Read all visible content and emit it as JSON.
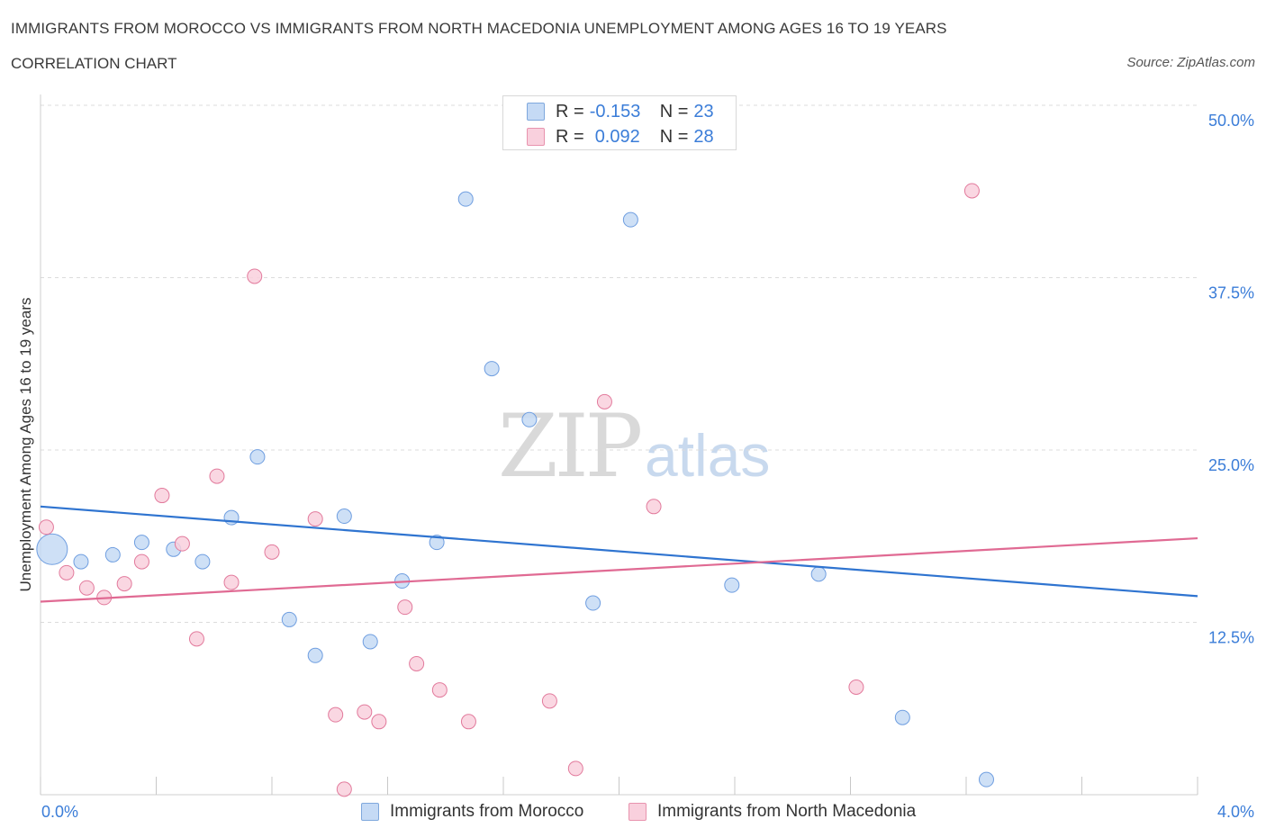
{
  "header": {
    "title": "IMMIGRANTS FROM MOROCCO VS IMMIGRANTS FROM NORTH MACEDONIA UNEMPLOYMENT AMONG AGES 16 TO 19 YEARS",
    "subtitle": "CORRELATION CHART",
    "source": "Source: ZipAtlas.com"
  },
  "watermark": {
    "zip": "ZIP",
    "atlas": "atlas"
  },
  "legend": {
    "rows": [
      {
        "r_label": "R =",
        "r_value": "-0.153",
        "n_label": "N =",
        "n_value": "23",
        "color": "#a9c8f0",
        "border": "#7fa8dd"
      },
      {
        "r_label": "R =",
        "r_value": "0.092",
        "n_label": "N =",
        "n_value": "28",
        "color": "#f6c2d2",
        "border": "#e893ae"
      }
    ]
  },
  "bottom_legend": {
    "morocco": "Immigrants from Morocco",
    "macedonia": "Immigrants from North Macedonia"
  },
  "chart_data": {
    "type": "scatter",
    "title": "IMMIGRANTS FROM MOROCCO VS IMMIGRANTS FROM NORTH MACEDONIA UNEMPLOYMENT AMONG AGES 16 TO 19 YEARS",
    "xlabel": "",
    "ylabel": "Unemployment Among Ages 16 to 19 years",
    "xlim": [
      0,
      4
    ],
    "ylim": [
      0,
      50
    ],
    "x_tick_labels": [
      "0.0%",
      "4.0%"
    ],
    "y_ticks": [
      12.5,
      25,
      37.5,
      50
    ],
    "y_tick_labels": [
      "12.5%",
      "25.0%",
      "37.5%",
      "50.0%"
    ],
    "grid": true,
    "series": [
      {
        "name": "Immigrants from Morocco",
        "color": "#6f9ee0",
        "fill": "#c5daf5",
        "trend": {
          "x": [
            0,
            4
          ],
          "y": [
            20.9,
            14.4
          ]
        },
        "points": [
          {
            "x": 0.04,
            "y": 17.8,
            "s": "large"
          },
          {
            "x": 0.14,
            "y": 16.9
          },
          {
            "x": 0.25,
            "y": 17.4
          },
          {
            "x": 0.35,
            "y": 18.3
          },
          {
            "x": 0.46,
            "y": 17.8
          },
          {
            "x": 0.56,
            "y": 16.9
          },
          {
            "x": 0.66,
            "y": 20.1
          },
          {
            "x": 0.75,
            "y": 24.5
          },
          {
            "x": 0.86,
            "y": 12.7
          },
          {
            "x": 0.95,
            "y": 10.1
          },
          {
            "x": 1.05,
            "y": 20.2
          },
          {
            "x": 1.14,
            "y": 11.1
          },
          {
            "x": 1.25,
            "y": 15.5
          },
          {
            "x": 1.37,
            "y": 18.3
          },
          {
            "x": 1.47,
            "y": 43.2
          },
          {
            "x": 1.56,
            "y": 30.9
          },
          {
            "x": 1.69,
            "y": 27.2
          },
          {
            "x": 1.91,
            "y": 13.9
          },
          {
            "x": 2.04,
            "y": 41.7
          },
          {
            "x": 2.39,
            "y": 15.2
          },
          {
            "x": 2.69,
            "y": 16.0
          },
          {
            "x": 2.98,
            "y": 5.6
          },
          {
            "x": 3.27,
            "y": 1.1
          }
        ]
      },
      {
        "name": "Immigrants from North Macedonia",
        "color": "#e27a9c",
        "fill": "#f9d0dd",
        "trend": {
          "x": [
            0,
            4
          ],
          "y": [
            14.0,
            18.6
          ]
        },
        "points": [
          {
            "x": 0.02,
            "y": 19.4
          },
          {
            "x": 0.09,
            "y": 16.1
          },
          {
            "x": 0.16,
            "y": 15.0
          },
          {
            "x": 0.22,
            "y": 14.3
          },
          {
            "x": 0.29,
            "y": 15.3
          },
          {
            "x": 0.35,
            "y": 16.9
          },
          {
            "x": 0.42,
            "y": 21.7
          },
          {
            "x": 0.49,
            "y": 18.2
          },
          {
            "x": 0.54,
            "y": 11.3
          },
          {
            "x": 0.61,
            "y": 23.1
          },
          {
            "x": 0.66,
            "y": 15.4
          },
          {
            "x": 0.74,
            "y": 37.6
          },
          {
            "x": 0.8,
            "y": 17.6
          },
          {
            "x": 0.95,
            "y": 20.0
          },
          {
            "x": 1.02,
            "y": 5.8
          },
          {
            "x": 1.05,
            "y": 0.4
          },
          {
            "x": 1.12,
            "y": 6.0
          },
          {
            "x": 1.17,
            "y": 5.3
          },
          {
            "x": 1.26,
            "y": 13.6
          },
          {
            "x": 1.3,
            "y": 9.5
          },
          {
            "x": 1.38,
            "y": 7.6
          },
          {
            "x": 1.48,
            "y": 5.3
          },
          {
            "x": 1.76,
            "y": 6.8
          },
          {
            "x": 1.85,
            "y": 1.9
          },
          {
            "x": 1.95,
            "y": 28.5
          },
          {
            "x": 2.12,
            "y": 20.9
          },
          {
            "x": 2.82,
            "y": 7.8
          },
          {
            "x": 3.22,
            "y": 43.8
          }
        ]
      }
    ]
  }
}
